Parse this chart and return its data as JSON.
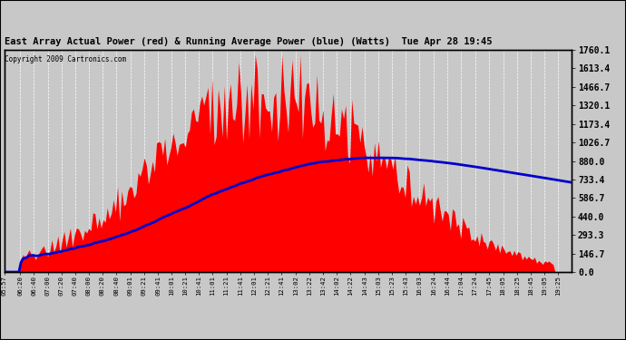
{
  "title": "East Array Actual Power (red) & Running Average Power (blue) (Watts)  Tue Apr 28 19:45",
  "copyright": "Copyright 2009 Cartronics.com",
  "bg_color": "#c8c8c8",
  "yticks": [
    0.0,
    146.7,
    293.3,
    440.0,
    586.7,
    733.4,
    880.0,
    1026.7,
    1173.4,
    1320.1,
    1466.7,
    1613.4,
    1760.1
  ],
  "ymax": 1760.1,
  "ymin": 0.0,
  "red_color": "#ff0000",
  "blue_color": "#0000cc",
  "grid_color": "#ffffff",
  "tick_label_color": "#000000",
  "title_color": "#000000",
  "tick_labels": [
    "05:57",
    "06:20",
    "06:40",
    "07:00",
    "07:20",
    "07:40",
    "08:00",
    "08:20",
    "08:40",
    "09:01",
    "09:21",
    "09:41",
    "10:01",
    "10:21",
    "10:41",
    "11:01",
    "11:21",
    "11:41",
    "12:01",
    "12:21",
    "12:41",
    "13:02",
    "13:22",
    "13:42",
    "14:02",
    "14:22",
    "14:43",
    "15:03",
    "15:23",
    "15:43",
    "16:03",
    "16:24",
    "16:44",
    "17:04",
    "17:24",
    "17:45",
    "18:05",
    "18:25",
    "18:45",
    "19:05",
    "19:25"
  ]
}
